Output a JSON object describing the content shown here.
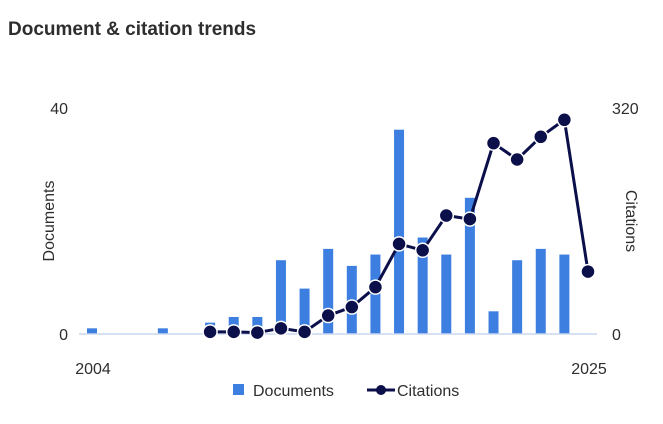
{
  "title": "Document & citation trends",
  "colors": {
    "bars": "#3d7fe0",
    "line": "#0b0f4a",
    "axis": "#c9d8ef"
  },
  "chart_data": {
    "type": "bar",
    "x": [
      2004,
      2005,
      2006,
      2007,
      2008,
      2009,
      2010,
      2011,
      2012,
      2013,
      2014,
      2015,
      2016,
      2017,
      2018,
      2019,
      2020,
      2021,
      2022,
      2023,
      2024,
      2025
    ],
    "series": [
      {
        "name": "Documents",
        "axis": "left",
        "mark": "bar",
        "values": [
          1,
          0,
          0,
          1,
          0,
          2,
          3,
          3,
          13,
          8,
          15,
          12,
          14,
          36,
          17,
          14,
          24,
          4,
          13,
          15,
          14,
          null
        ]
      },
      {
        "name": "Citations",
        "axis": "right",
        "mark": "line",
        "values": [
          null,
          null,
          null,
          null,
          null,
          3,
          3,
          2,
          8,
          3,
          26,
          38,
          66,
          127,
          118,
          167,
          162,
          269,
          246,
          278,
          302,
          88
        ]
      }
    ],
    "xtick_labels": [
      "2004",
      "2025"
    ],
    "ylabel": "Documents",
    "y2label": "Citations",
    "ylim": [
      0,
      40
    ],
    "y2lim": [
      0,
      320
    ],
    "yticks": [
      "0",
      "40"
    ],
    "y2ticks": [
      "0",
      "320"
    ],
    "grid": false,
    "legend": "bottom"
  }
}
